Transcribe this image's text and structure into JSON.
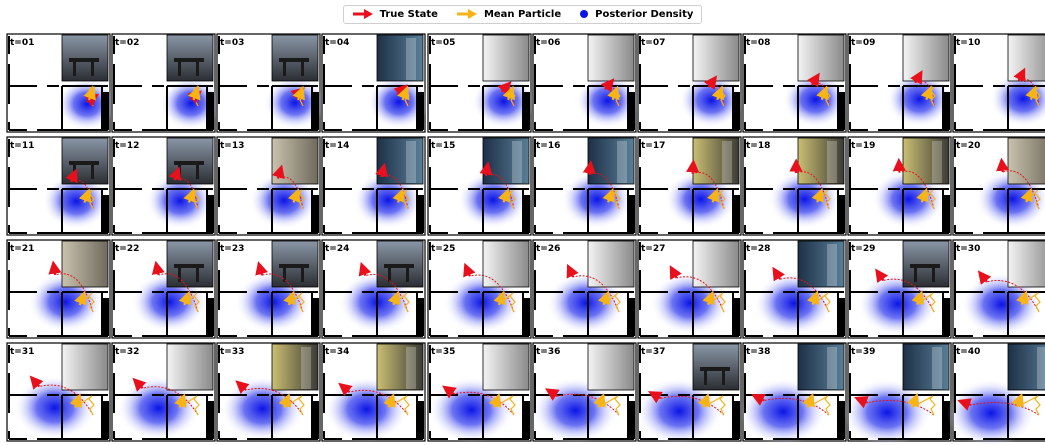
{
  "legend": {
    "true_state": "True State",
    "mean_particle": "Mean Particle",
    "posterior_density": "Posterior Density"
  },
  "colors": {
    "true_state": "#e8101c",
    "mean_particle": "#f6b417",
    "posterior": "#0a14e6"
  },
  "frames": [
    {
      "label": "t=01",
      "view": "dark"
    },
    {
      "label": "t=02",
      "view": "dark"
    },
    {
      "label": "t=03",
      "view": "dark"
    },
    {
      "label": "t=04",
      "view": "blue"
    },
    {
      "label": "t=05",
      "view": "gray"
    },
    {
      "label": "t=06",
      "view": "gray"
    },
    {
      "label": "t=07",
      "view": "gray"
    },
    {
      "label": "t=08",
      "view": "gray"
    },
    {
      "label": "t=09",
      "view": "gray"
    },
    {
      "label": "t=10",
      "view": "gray"
    },
    {
      "label": "t=11",
      "view": "dark"
    },
    {
      "label": "t=12",
      "view": "dark"
    },
    {
      "label": "t=13",
      "view": "beige"
    },
    {
      "label": "t=14",
      "view": "blue"
    },
    {
      "label": "t=15",
      "view": "blue"
    },
    {
      "label": "t=16",
      "view": "blue"
    },
    {
      "label": "t=17",
      "view": "yellow"
    },
    {
      "label": "t=18",
      "view": "yellow"
    },
    {
      "label": "t=19",
      "view": "yellow"
    },
    {
      "label": "t=20",
      "view": "beige"
    },
    {
      "label": "t=21",
      "view": "beige"
    },
    {
      "label": "t=22",
      "view": "dark"
    },
    {
      "label": "t=23",
      "view": "dark"
    },
    {
      "label": "t=24",
      "view": "dark"
    },
    {
      "label": "t=25",
      "view": "gray"
    },
    {
      "label": "t=26",
      "view": "gray"
    },
    {
      "label": "t=27",
      "view": "gray"
    },
    {
      "label": "t=28",
      "view": "blue"
    },
    {
      "label": "t=29",
      "view": "dark"
    },
    {
      "label": "t=30",
      "view": "gray"
    },
    {
      "label": "t=31",
      "view": "gray"
    },
    {
      "label": "t=32",
      "view": "gray"
    },
    {
      "label": "t=33",
      "view": "yellow"
    },
    {
      "label": "t=34",
      "view": "yellow"
    },
    {
      "label": "t=35",
      "view": "gray"
    },
    {
      "label": "t=36",
      "view": "gray"
    },
    {
      "label": "t=37",
      "view": "dark"
    },
    {
      "label": "t=38",
      "view": "blue"
    },
    {
      "label": "t=39",
      "view": "blue"
    },
    {
      "label": "t=40",
      "view": "blue"
    }
  ]
}
